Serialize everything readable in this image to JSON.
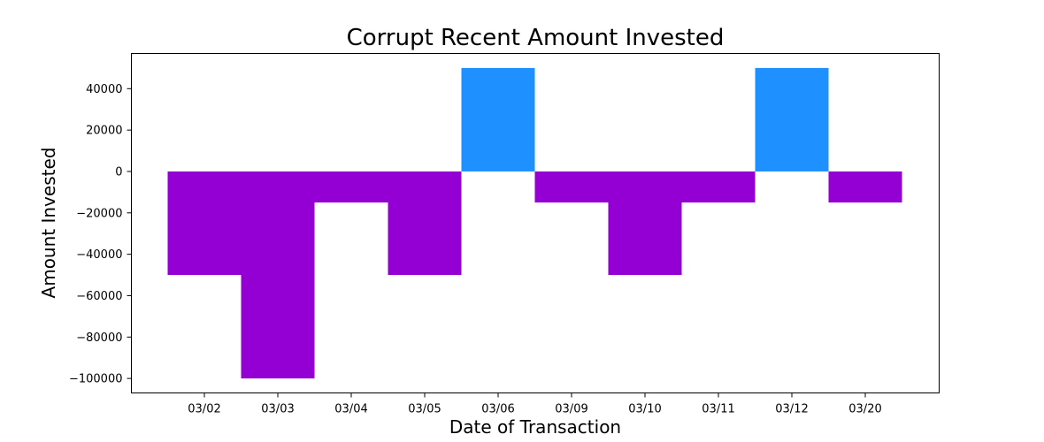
{
  "chart_data": {
    "type": "bar",
    "title": "Corrupt Recent Amount Invested",
    "xlabel": "Date of Transaction",
    "ylabel": "Amount Invested",
    "categories": [
      "03/02",
      "03/03",
      "03/04",
      "03/05",
      "03/06",
      "03/09",
      "03/10",
      "03/11",
      "03/12",
      "03/20"
    ],
    "values": [
      -50000,
      -100000,
      -15000,
      -50000,
      50000,
      -15000,
      -50000,
      -15000,
      50000,
      -15000
    ],
    "ylim": [
      -107000,
      57000
    ],
    "yticks": [
      40000,
      20000,
      0,
      -20000,
      -40000,
      -60000,
      -80000,
      -100000
    ],
    "colors": {
      "positive": "#1E90FF",
      "negative": "#9400D3"
    },
    "grid": false,
    "legend": "none"
  }
}
